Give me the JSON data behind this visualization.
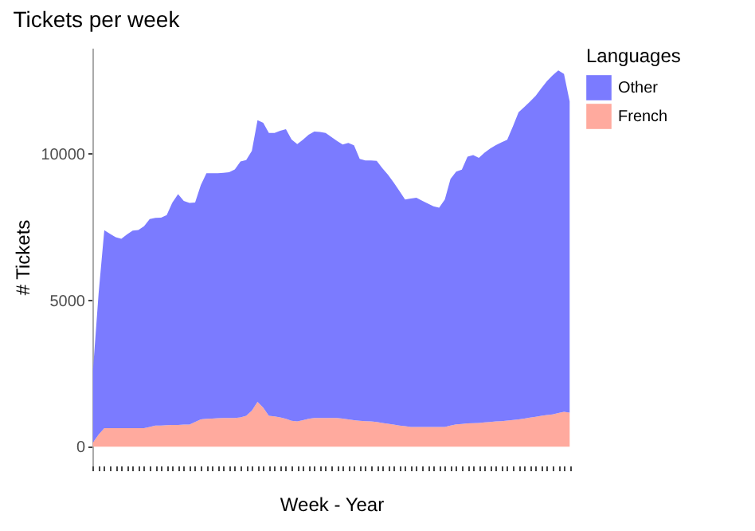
{
  "chart_data": {
    "type": "area",
    "title": "Tickets per week",
    "xlabel": "Week - Year",
    "ylabel": "# Tickets",
    "legend_title": "Languages",
    "categories": [
      null,
      null,
      null,
      null,
      null,
      null,
      null,
      null,
      null,
      null,
      null,
      null,
      null,
      null,
      null,
      null,
      null,
      null,
      null,
      null,
      null,
      null,
      null,
      null,
      null,
      null,
      null,
      null,
      null,
      null,
      null,
      null,
      null,
      null,
      null,
      null,
      null,
      null,
      null,
      null,
      null,
      null,
      null,
      null,
      null,
      null,
      null,
      null,
      null,
      null,
      null,
      null,
      null,
      null,
      null,
      null,
      null,
      null,
      null,
      null,
      null,
      null,
      null,
      null,
      null,
      null,
      null,
      null,
      null,
      null,
      null,
      null,
      null,
      null,
      null,
      null,
      null,
      null,
      null,
      null,
      null,
      null,
      null,
      null,
      null
    ],
    "stacked": true,
    "series": [
      {
        "name": "French",
        "color": "#ffaa9e",
        "values": [
          140,
          410,
          630,
          630,
          630,
          630,
          630,
          630,
          630,
          630,
          670,
          720,
          720,
          730,
          740,
          740,
          750,
          750,
          840,
          930,
          950,
          960,
          970,
          980,
          980,
          980,
          1000,
          1050,
          1230,
          1530,
          1330,
          1050,
          1030,
          1000,
          950,
          880,
          860,
          900,
          950,
          980,
          980,
          980,
          980,
          980,
          960,
          930,
          900,
          880,
          870,
          860,
          840,
          810,
          780,
          750,
          720,
          700,
          670,
          670,
          670,
          670,
          670,
          670,
          670,
          720,
          760,
          770,
          790,
          800,
          810,
          830,
          840,
          860,
          870,
          890,
          910,
          930,
          960,
          990,
          1020,
          1050,
          1080,
          1100,
          1150,
          1190,
          1160
        ]
      },
      {
        "name": "Other",
        "color": "#7b7bff",
        "values": [
          2450,
          4830,
          6760,
          6640,
          6520,
          6470,
          6620,
          6750,
          6770,
          6900,
          7100,
          7090,
          7100,
          7180,
          7600,
          7880,
          7640,
          7570,
          7500,
          8000,
          8390,
          8380,
          8370,
          8370,
          8390,
          8490,
          8740,
          8740,
          8870,
          9620,
          9730,
          9660,
          9680,
          9790,
          9890,
          9610,
          9470,
          9580,
          9700,
          9780,
          9770,
          9730,
          9600,
          9460,
          9360,
          9440,
          9390,
          8950,
          8900,
          8910,
          8920,
          8700,
          8500,
          8270,
          8010,
          7740,
          7800,
          7830,
          7730,
          7630,
          7540,
          7490,
          7770,
          8420,
          8630,
          8690,
          9110,
          9160,
          9050,
          9210,
          9340,
          9440,
          9520,
          9590,
          10030,
          10490,
          10640,
          10790,
          10960,
          11190,
          11400,
          11580,
          11700,
          11540,
          10630
        ]
      }
    ],
    "ylim": [
      -650,
      13620
    ],
    "yticks": [
      0,
      5000,
      10000
    ],
    "grid": false,
    "legend": "right"
  }
}
